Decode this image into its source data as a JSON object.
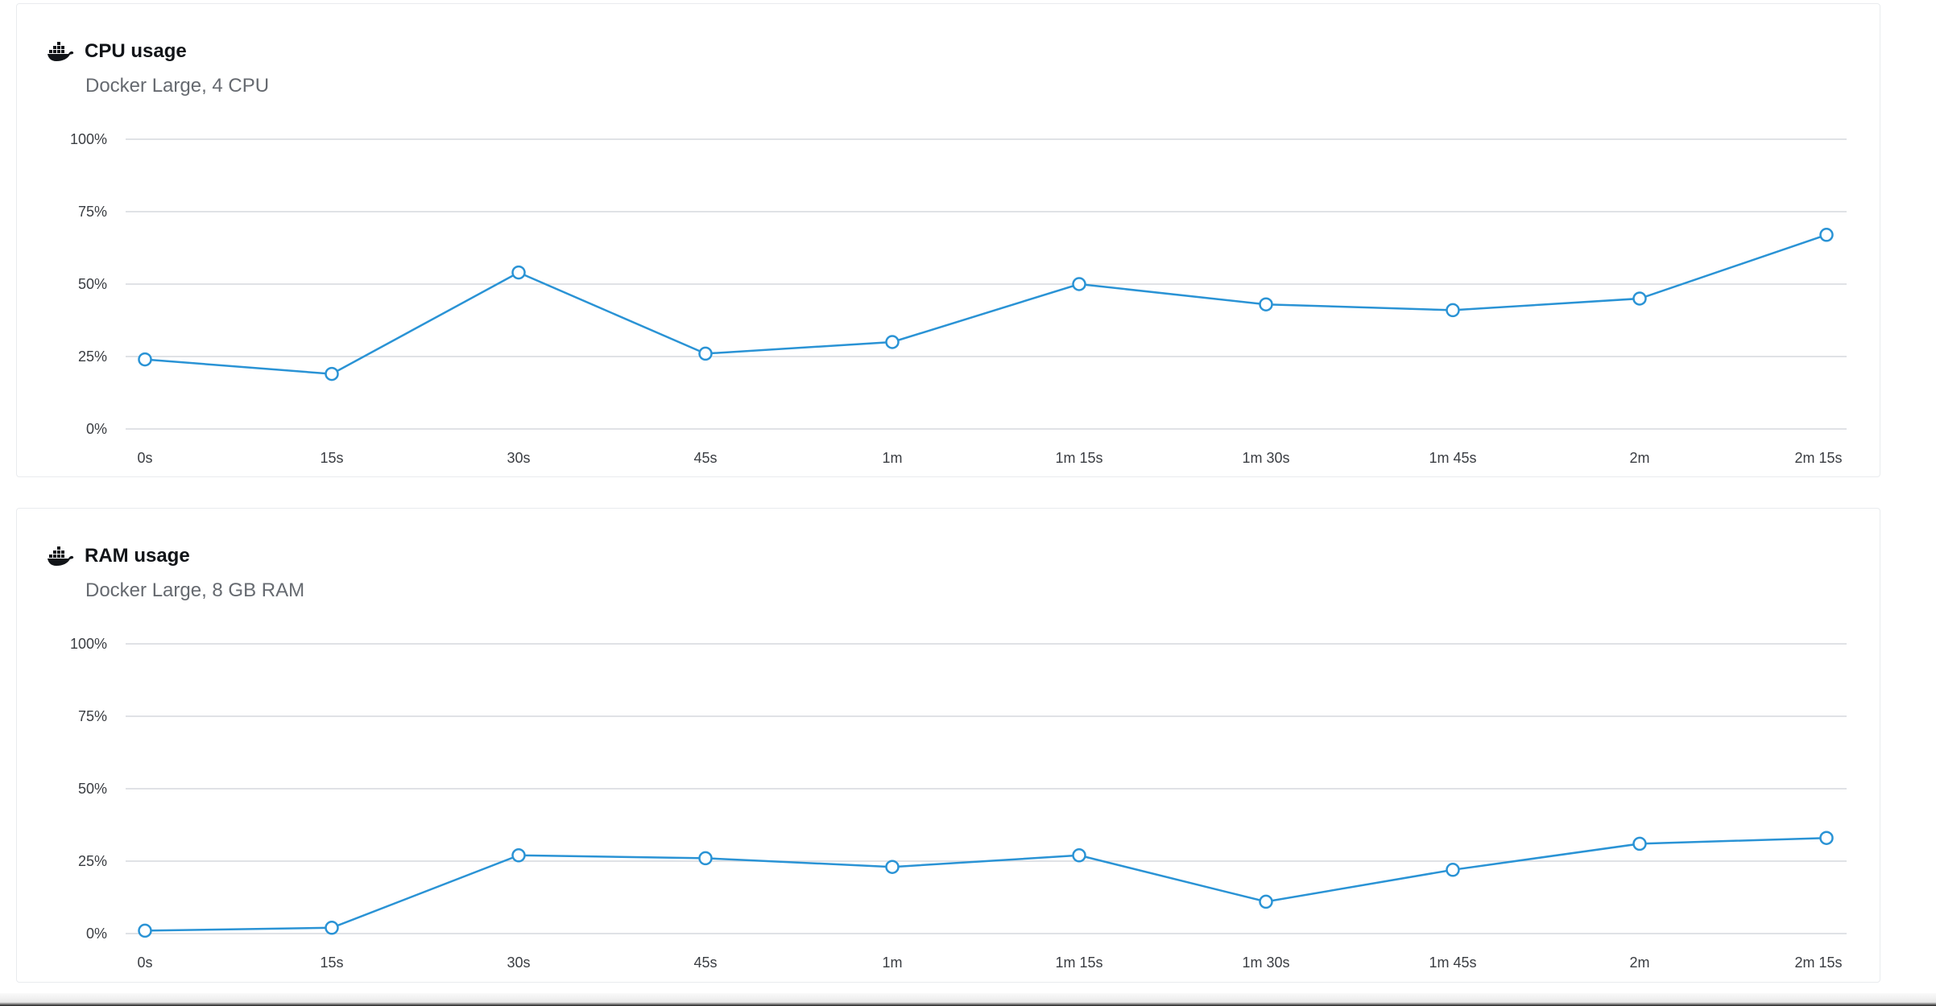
{
  "colors": {
    "series": "#2a93d5",
    "grid": "#d6d9dd",
    "title": "#111418",
    "subtitle": "#666a70"
  },
  "panels": [
    {
      "icon": "docker-icon",
      "title": "CPU usage",
      "subtitle": "Docker Large, 4 CPU"
    },
    {
      "icon": "docker-icon",
      "title": "RAM usage",
      "subtitle": "Docker Large, 8 GB RAM"
    }
  ],
  "chart_data": [
    {
      "type": "line",
      "title": "CPU usage",
      "subtitle": "Docker Large, 4 CPU",
      "xlabel": "",
      "ylabel": "",
      "categories": [
        "0s",
        "15s",
        "30s",
        "45s",
        "1m",
        "1m 15s",
        "1m 30s",
        "1m 45s",
        "2m",
        "2m 15s"
      ],
      "y_ticks": [
        "0%",
        "25%",
        "50%",
        "75%",
        "100%"
      ],
      "ylim": [
        0,
        100
      ],
      "grid": true,
      "legend": "none",
      "series": [
        {
          "values": [
            24,
            19,
            54,
            26,
            30,
            50,
            43,
            41,
            45,
            67
          ]
        }
      ]
    },
    {
      "type": "line",
      "title": "RAM usage",
      "subtitle": "Docker Large, 8 GB RAM",
      "xlabel": "",
      "ylabel": "",
      "categories": [
        "0s",
        "15s",
        "30s",
        "45s",
        "1m",
        "1m 15s",
        "1m 30s",
        "1m 45s",
        "2m",
        "2m 15s"
      ],
      "y_ticks": [
        "0%",
        "25%",
        "50%",
        "75%",
        "100%"
      ],
      "ylim": [
        0,
        100
      ],
      "grid": true,
      "legend": "none",
      "series": [
        {
          "values": [
            1,
            2,
            27,
            26,
            23,
            27,
            11,
            22,
            31,
            33
          ]
        }
      ]
    }
  ]
}
